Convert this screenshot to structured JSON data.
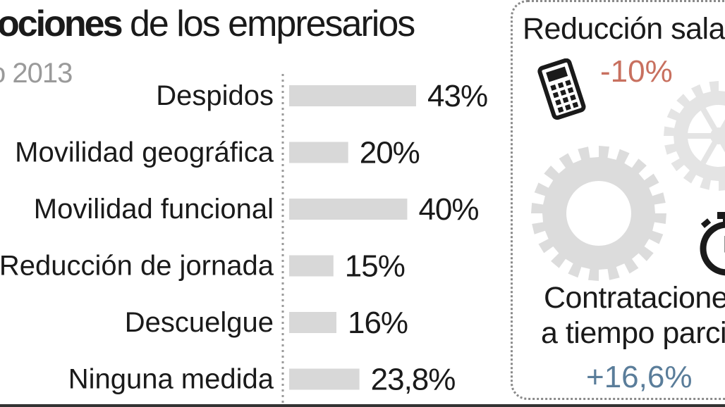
{
  "header": {
    "title_bold": "ociones",
    "title_rest": "de los empresarios",
    "subtitle": "o 2013"
  },
  "chart_data": {
    "type": "bar",
    "orientation": "horizontal",
    "categories": [
      "Despidos",
      "Movilidad geográfica",
      "Movilidad funcional",
      "Reducción de jornada",
      "Descuelgue",
      "Ninguna medida"
    ],
    "values": [
      43,
      20,
      40,
      15,
      16,
      23.8
    ],
    "value_labels": [
      "43%",
      "20%",
      "40%",
      "15%",
      "16%",
      "23,8%"
    ],
    "bar_color": "#d8d8d8",
    "xlim": [
      0,
      43
    ]
  },
  "side_panel": {
    "salary_label": "Reducción salar",
    "salary_value": "-10%",
    "salary_color": "#c8705f",
    "contracts_label_1": "Contratacione",
    "contracts_label_2": "a tiempo parci",
    "contracts_value": "+16,6%",
    "contracts_color": "#5a7d9a",
    "icons": [
      "calculator-icon",
      "gear-icon",
      "stopwatch-icon"
    ]
  }
}
